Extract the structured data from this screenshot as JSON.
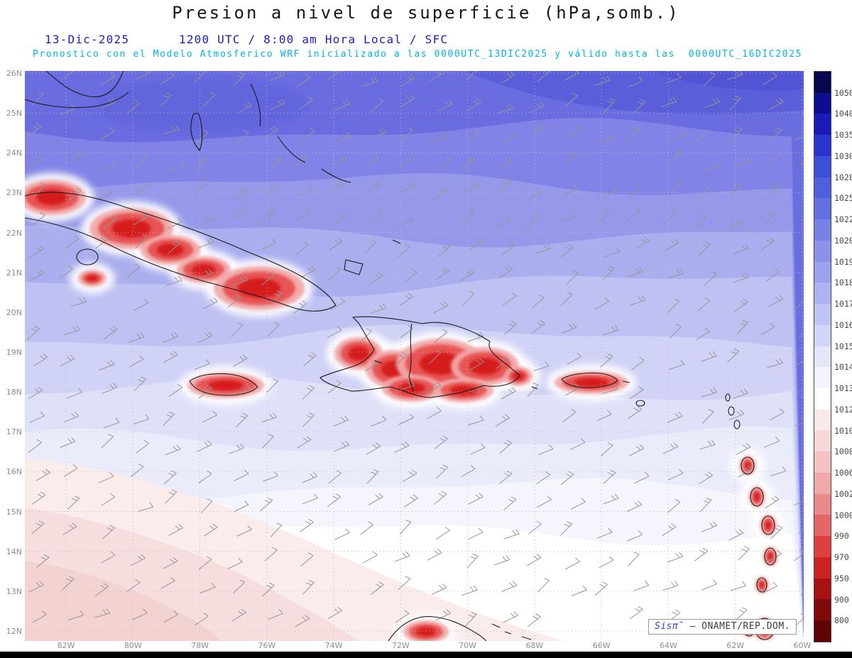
{
  "header": {
    "title": "Presion a nivel de superficie (hPa,somb.)",
    "date": "13-Dic-2025",
    "time_line": "1200 UTC / 8:00 am Hora Local / SFC",
    "forecast_line": "Pronostico con el Modelo Atmosferico WRF inicializado a las 0000UTC_13DIC2025 y válido hasta las  0000UTC_16DIC2025"
  },
  "map": {
    "lat_labels": [
      "26N",
      "25N",
      "24N",
      "23N",
      "22N",
      "21N",
      "20N",
      "19N",
      "18N",
      "17N",
      "16N",
      "15N",
      "14N",
      "13N",
      "12N"
    ],
    "lon_labels": [
      "82W",
      "80W",
      "78W",
      "76W",
      "74W",
      "72W",
      "70W",
      "68W",
      "66W",
      "64W",
      "62W",
      "60W"
    ]
  },
  "colorbar": {
    "values": [
      "1050",
      "1040",
      "1035",
      "1030",
      "1028",
      "1025",
      "1022",
      "1020",
      "1019",
      "1018",
      "1017",
      "1016",
      "1015",
      "1014",
      "1013",
      "1012",
      "1010",
      "1008",
      "1006",
      "1002",
      "1000",
      "990",
      "970",
      "950",
      "900",
      "800"
    ],
    "colors": [
      "#07074f",
      "#0d0d8f",
      "#1a1ab8",
      "#2a35cf",
      "#3c4fd8",
      "#5060dd",
      "#6370e2",
      "#7781e6",
      "#8a92ea",
      "#9ca3ee",
      "#aeb3f1",
      "#c0c4f4",
      "#d2d5f7",
      "#e4e6fa",
      "#f5f5fd",
      "#ffffff",
      "#fbeaea",
      "#f8d8d8",
      "#f4c2c2",
      "#f0a8a8",
      "#ea8a8a",
      "#e46666",
      "#dd4040",
      "#cc2222",
      "#a81111",
      "#800808",
      "#5e0404"
    ]
  },
  "credit": {
    "logo": "Sisπ̃",
    "text": "— ONAMET/REP.DOM."
  },
  "chart_data": {
    "type": "heatmap",
    "title": "Presion a nivel de superficie (hPa,somb.)",
    "x_ticks": [
      "82W",
      "80W",
      "78W",
      "76W",
      "74W",
      "72W",
      "70W",
      "68W",
      "66W",
      "64W",
      "62W",
      "60W"
    ],
    "y_ticks": [
      "12N",
      "13N",
      "14N",
      "15N",
      "16N",
      "17N",
      "18N",
      "19N",
      "20N",
      "21N",
      "22N",
      "23N",
      "24N",
      "25N",
      "26N"
    ],
    "units": "hPa",
    "colorbar_levels": [
      1050,
      1040,
      1035,
      1030,
      1028,
      1025,
      1022,
      1020,
      1019,
      1018,
      1017,
      1016,
      1015,
      1014,
      1013,
      1012,
      1010,
      1008,
      1006,
      1002,
      1000,
      990,
      970,
      950,
      900,
      800
    ],
    "legend_position": "right",
    "grid": true,
    "features": [
      {
        "region": "Atlantic north of 23N",
        "pressure_hPa": "1019-1028, increasing toward the northeast (high pressure)"
      },
      {
        "region": "Central Caribbean 15N-18N",
        "pressure_hPa": "1014-1016"
      },
      {
        "region": "Southwest Caribbean 12N-15N west of 72W",
        "pressure_hPa": "1012-1013 (pale pink)"
      },
      {
        "region": "Island interiors: Cuba, Jamaica, Hispaniola, Puerto Rico, Lesser Antilles",
        "pressure_hPa": "990-1008 red shaded minima"
      }
    ],
    "overlays": [
      "wind barbs (gray)",
      "coastlines (black)",
      "dotted lat/lon graticule every 1° lat / 2° lon"
    ]
  }
}
